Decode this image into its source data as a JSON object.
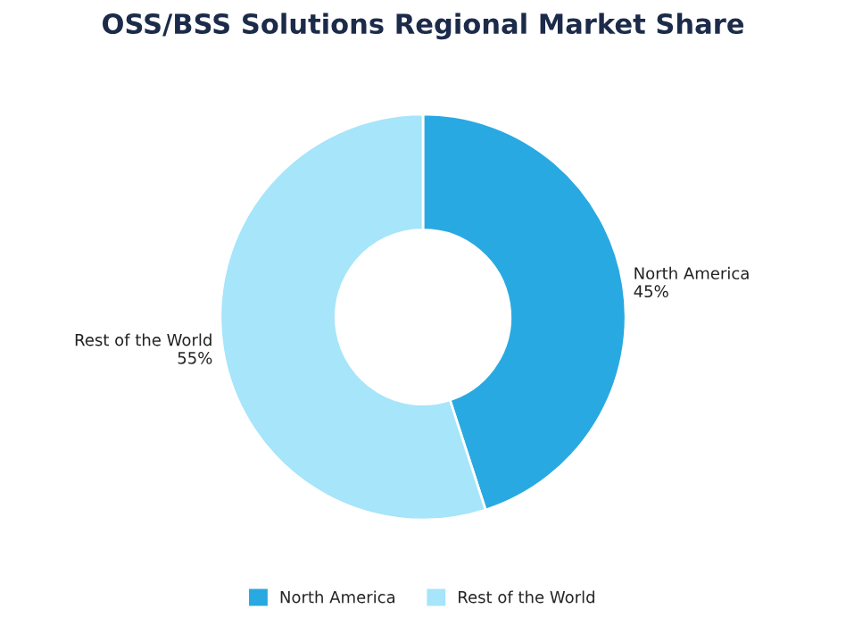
{
  "chart_data": {
    "type": "donut",
    "title": "OSS/BSS Solutions Regional Market Share",
    "categories": [
      "North America",
      "Rest of the World"
    ],
    "values": [
      45,
      55
    ],
    "value_labels": [
      "45%",
      "55%"
    ],
    "colors": [
      "#29a9e1",
      "#a6e5fa"
    ],
    "legend": "bottom"
  }
}
